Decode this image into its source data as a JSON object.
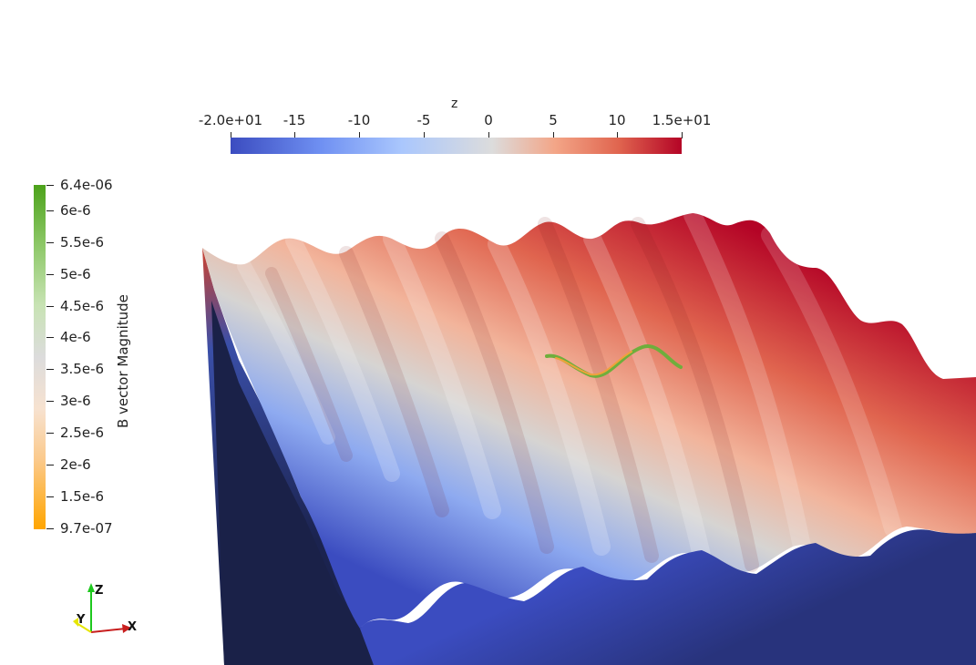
{
  "scalar_bar_z": {
    "title": "z",
    "ticks": [
      "-2.0e+01",
      "-15",
      "-10",
      "-5",
      "0",
      "5",
      "10",
      "1.5e+01"
    ],
    "colors": [
      "#3b4cc0",
      "#dcdcdc",
      "#b40426"
    ]
  },
  "scalar_bar_b": {
    "title": "B vector Magnitude",
    "ticks": [
      "6.4e-06",
      "6e-6",
      "5.5e-6",
      "5e-6",
      "4.5e-6",
      "4e-6",
      "3.5e-6",
      "3e-6",
      "2.5e-6",
      "2e-6",
      "1.5e-6",
      "9.7e-07"
    ],
    "colors": [
      "#4ca21a",
      "#dcdcdc",
      "#ffa500"
    ]
  },
  "orientation_axes": {
    "x_label": "X",
    "y_label": "Y",
    "z_label": "Z",
    "x_color": "#c81e1e",
    "y_color": "#e6e600",
    "z_color": "#1ec81e"
  }
}
